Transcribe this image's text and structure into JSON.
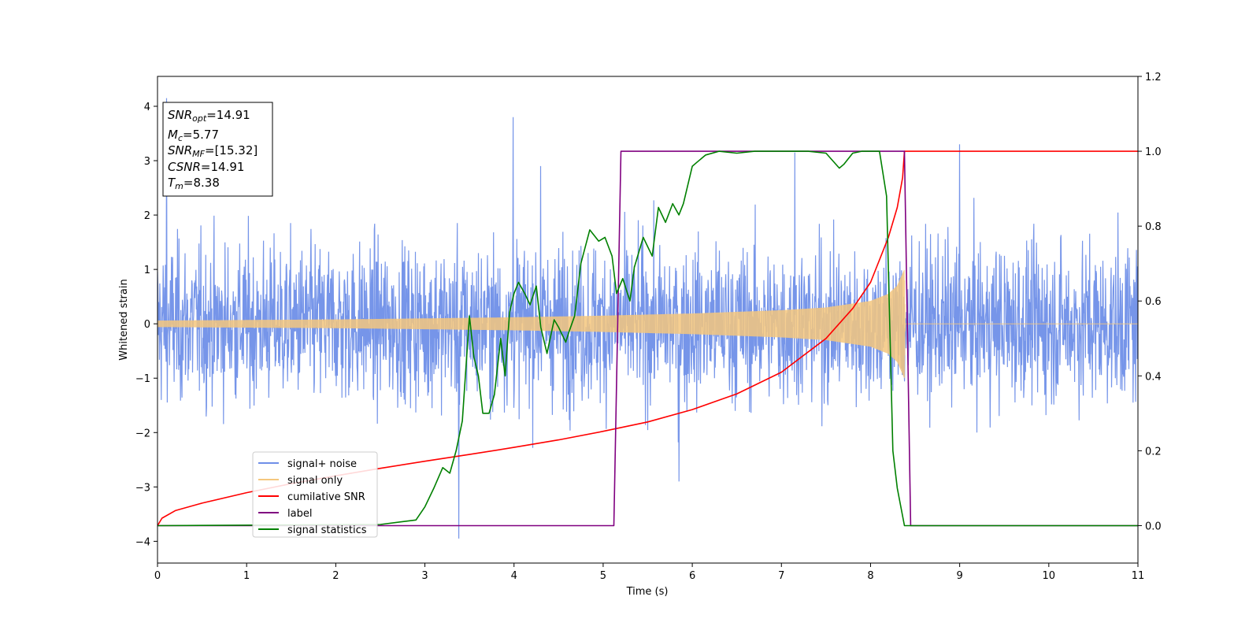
{
  "chart_data": {
    "type": "line",
    "xlabel": "Time (s)",
    "ylabel": "Whitened strain",
    "xlim": [
      0,
      11
    ],
    "ylim": [
      -4.4,
      4.55
    ],
    "y2lim": [
      -0.1,
      1.2
    ],
    "x_ticks": [
      0,
      1,
      2,
      3,
      4,
      5,
      6,
      7,
      8,
      9,
      10,
      11
    ],
    "y_ticks": [
      -4,
      -3,
      -2,
      -1,
      0,
      1,
      2,
      3,
      4
    ],
    "y_tick_labels": [
      "−4",
      "−3",
      "−2",
      "−1",
      "0",
      "1",
      "2",
      "3",
      "4"
    ],
    "y2_ticks": [
      0.0,
      0.2,
      0.4,
      0.6,
      0.8,
      1.0,
      1.2
    ],
    "y2_tick_labels": [
      "0.0",
      "0.2",
      "0.4",
      "0.6",
      "0.8",
      "1.0",
      "1.2"
    ],
    "grid": false,
    "legend_position": "lower-left",
    "annotation": [
      {
        "main": "SNR",
        "sub": "opt",
        "rest": "=14.91"
      },
      {
        "main": "M",
        "sub": "c",
        "rest": "=5.77"
      },
      {
        "main": "SNR",
        "sub": "MF",
        "rest": "=[15.32]"
      },
      {
        "main": "CSNR",
        "sub": "",
        "rest": "=14.91"
      },
      {
        "main": "T",
        "sub": "m",
        "rest": "=8.38"
      }
    ],
    "series": [
      {
        "name": "signal+ noise",
        "color": "#6f8fe8",
        "axis": "left",
        "description_kind": "noise",
        "noise_amplitude": 1.0,
        "extremes": [
          [
            0.1,
            4.15
          ],
          [
            3.38,
            -3.95
          ],
          [
            3.99,
            3.8
          ],
          [
            9.0,
            3.3
          ],
          [
            5.85,
            -2.9
          ],
          [
            7.15,
            3.15
          ],
          [
            4.3,
            2.9
          ]
        ]
      },
      {
        "name": "signal only",
        "color": "#f5c77e",
        "axis": "left",
        "description_kind": "chirp",
        "envelope_x": [
          0,
          1,
          2,
          3,
          4,
          5,
          6,
          7,
          7.5,
          8.0,
          8.2,
          8.3,
          8.38,
          8.39,
          11
        ],
        "envelope_y": [
          0.06,
          0.07,
          0.08,
          0.1,
          0.12,
          0.15,
          0.19,
          0.25,
          0.3,
          0.42,
          0.55,
          0.7,
          1.0,
          0.0,
          0.0
        ]
      },
      {
        "name": "cumilative SNR",
        "color": "#ff0000",
        "axis": "right",
        "x": [
          0,
          0.05,
          0.2,
          0.5,
          1,
          1.5,
          2,
          2.5,
          3,
          3.5,
          4,
          4.5,
          5,
          5.5,
          6,
          6.5,
          7,
          7.5,
          7.8,
          8.0,
          8.2,
          8.3,
          8.36,
          8.38,
          9,
          10,
          11
        ],
        "y": [
          0.0,
          0.02,
          0.04,
          0.06,
          0.088,
          0.112,
          0.133,
          0.153,
          0.172,
          0.19,
          0.209,
          0.229,
          0.252,
          0.277,
          0.31,
          0.352,
          0.41,
          0.5,
          0.58,
          0.65,
          0.77,
          0.85,
          0.93,
          1.0,
          1.0,
          1.0,
          1.0
        ]
      },
      {
        "name": "label",
        "color": "#800080",
        "axis": "right",
        "x": [
          0,
          5.12,
          5.2,
          8.38,
          8.45,
          11
        ],
        "y": [
          0,
          0,
          1,
          1,
          0,
          0
        ]
      },
      {
        "name": "signal statistics",
        "color": "#008000",
        "axis": "right",
        "x": [
          0,
          2.5,
          2.9,
          3.0,
          3.1,
          3.2,
          3.28,
          3.35,
          3.42,
          3.5,
          3.55,
          3.6,
          3.65,
          3.72,
          3.78,
          3.85,
          3.9,
          3.95,
          4.0,
          4.05,
          4.12,
          4.18,
          4.25,
          4.3,
          4.37,
          4.45,
          4.5,
          4.58,
          4.62,
          4.68,
          4.75,
          4.85,
          4.95,
          5.02,
          5.1,
          5.15,
          5.22,
          5.3,
          5.35,
          5.45,
          5.55,
          5.62,
          5.7,
          5.78,
          5.85,
          5.9,
          6.0,
          6.05,
          6.15,
          6.3,
          6.5,
          6.7,
          7.0,
          7.3,
          7.5,
          7.65,
          7.7,
          7.8,
          7.9,
          8.0,
          8.1,
          8.18,
          8.25,
          8.3,
          8.38,
          9,
          10,
          11
        ],
        "y": [
          0.0,
          0.003,
          0.015,
          0.05,
          0.1,
          0.155,
          0.14,
          0.2,
          0.28,
          0.56,
          0.45,
          0.4,
          0.3,
          0.3,
          0.35,
          0.5,
          0.4,
          0.57,
          0.62,
          0.65,
          0.62,
          0.59,
          0.64,
          0.53,
          0.46,
          0.55,
          0.53,
          0.49,
          0.52,
          0.56,
          0.7,
          0.79,
          0.76,
          0.77,
          0.72,
          0.62,
          0.66,
          0.6,
          0.69,
          0.77,
          0.72,
          0.85,
          0.81,
          0.86,
          0.83,
          0.86,
          0.96,
          0.97,
          0.99,
          1.0,
          0.995,
          1.0,
          1.0,
          1.0,
          0.995,
          0.955,
          0.965,
          0.995,
          1.0,
          1.0,
          1.0,
          0.88,
          0.2,
          0.1,
          0.0,
          0.0,
          0.0,
          0.0
        ]
      }
    ]
  }
}
